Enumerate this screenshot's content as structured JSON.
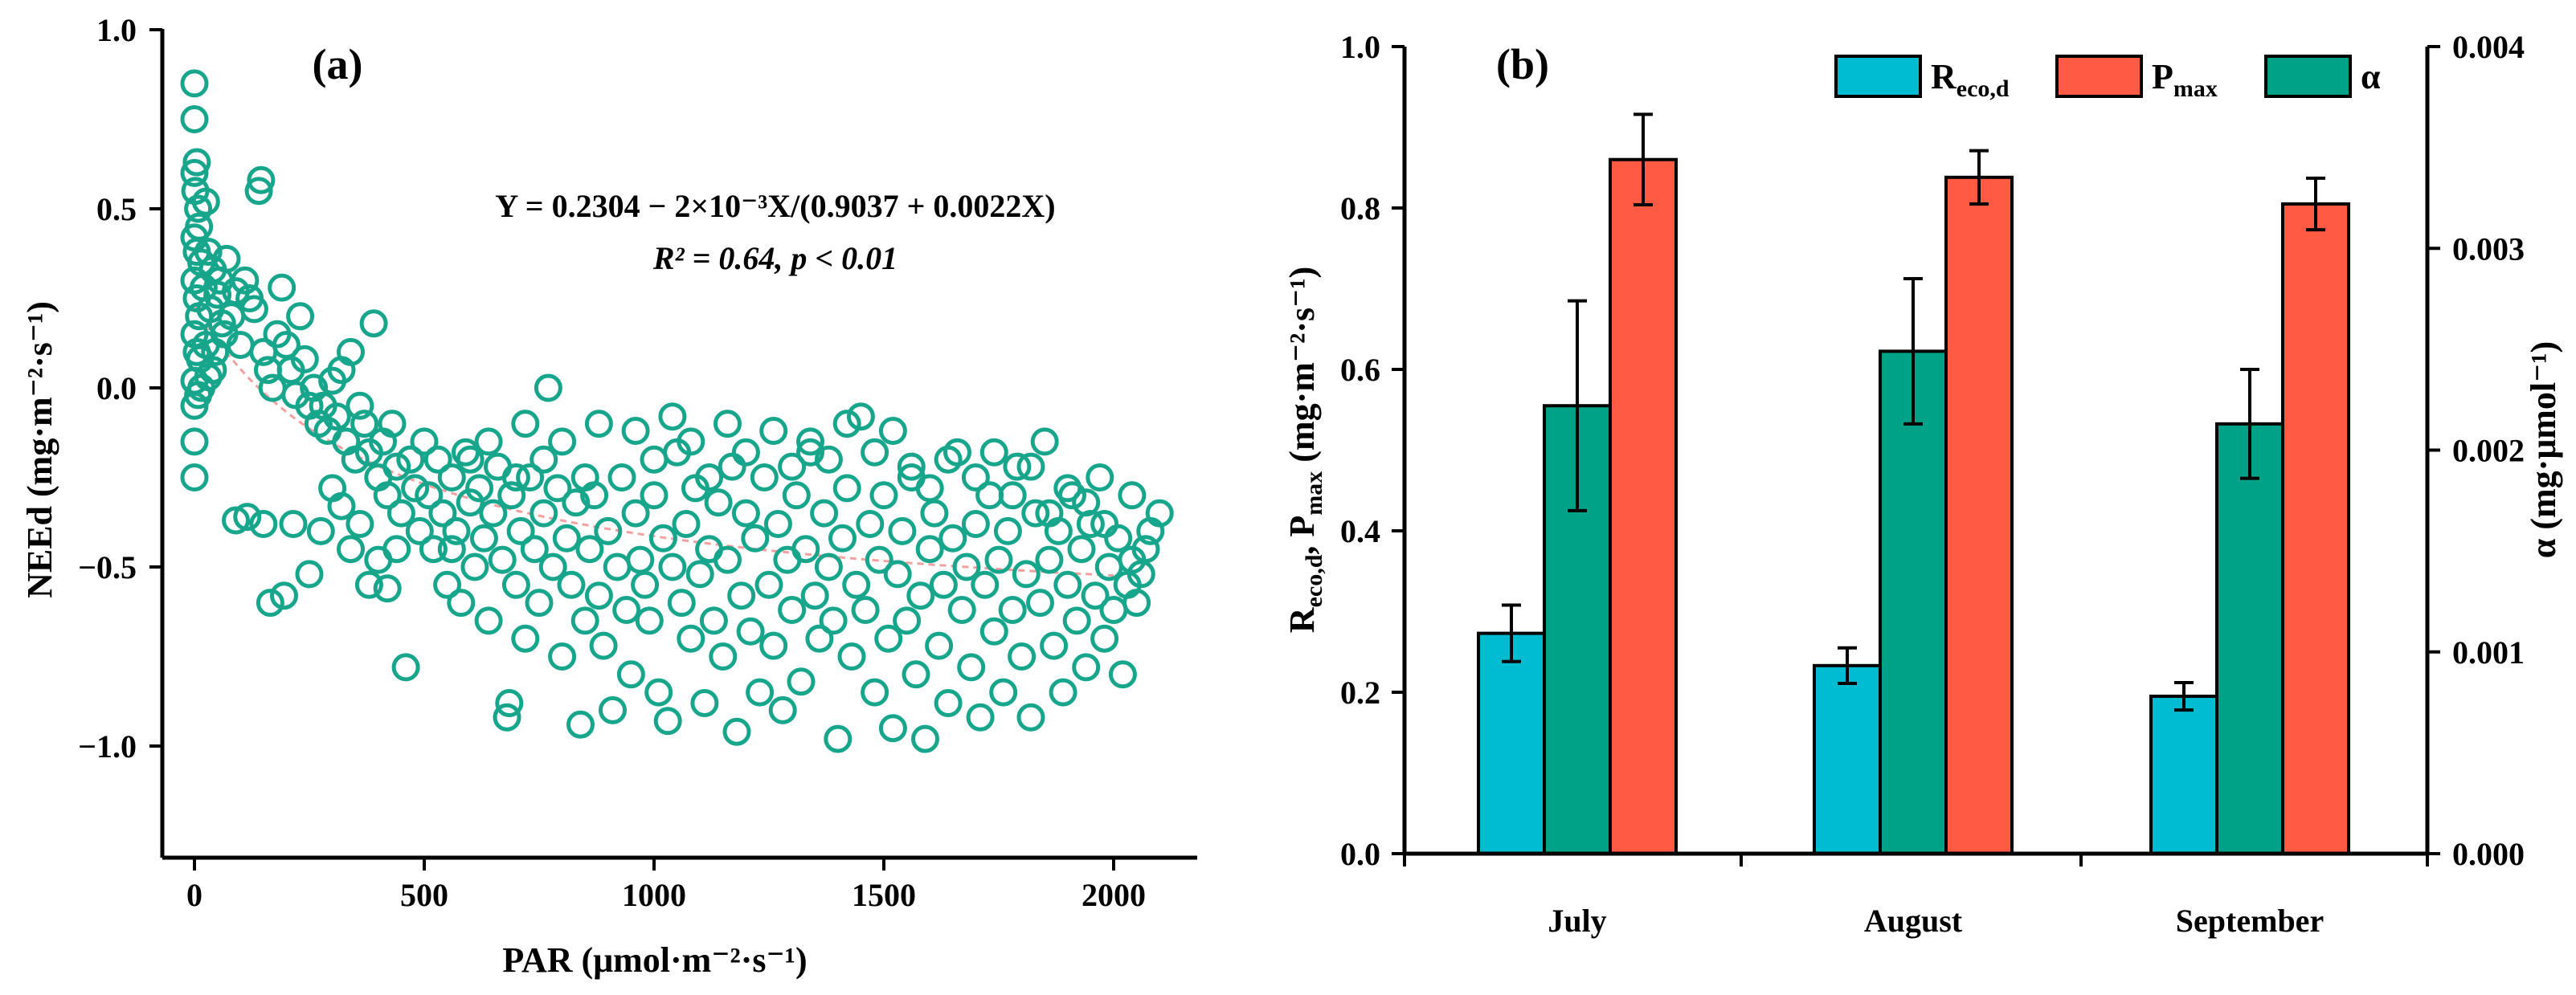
{
  "chart_data": [
    {
      "panel": "(a)",
      "type": "scatter",
      "xlabel": "PAR (μmol·m⁻²·s⁻¹)",
      "ylabel": "NEEd (mg·m⁻²·s⁻¹)",
      "xlim": [
        -50,
        2200
      ],
      "ylim": [
        -1.3,
        1.0
      ],
      "xticks": [
        0,
        500,
        1000,
        1500,
        2000
      ],
      "yticks": [
        -1.0,
        -0.5,
        0.0,
        0.5,
        1.0
      ],
      "xtick_labels": [
        "0",
        "500",
        "1000",
        "1500",
        "2000"
      ],
      "ytick_labels": [
        "−1.0",
        "−0.5",
        "0.0",
        "0.5",
        "1.0"
      ],
      "marker_color": "#17a58c",
      "fit_color": "#f2a0a0",
      "fit": {
        "a": 0.2304,
        "b": 0.9037,
        "c": 0.0022,
        "scale": 0.002
      },
      "equation": "Y = 0.2304 − 2×10⁻³X/(0.9037 + 0.0022X)",
      "stats": "R² = 0.64, p < 0.01",
      "points": [
        [
          0,
          0.85
        ],
        [
          0,
          0.75
        ],
        [
          5,
          0.63
        ],
        [
          0,
          0.6
        ],
        [
          2,
          0.55
        ],
        [
          8,
          0.5
        ],
        [
          25,
          0.52
        ],
        [
          10,
          0.45
        ],
        [
          0,
          0.42
        ],
        [
          5,
          0.38
        ],
        [
          15,
          0.35
        ],
        [
          30,
          0.38
        ],
        [
          40,
          0.33
        ],
        [
          55,
          0.3
        ],
        [
          70,
          0.36
        ],
        [
          0,
          0.3
        ],
        [
          5,
          0.25
        ],
        [
          10,
          0.2
        ],
        [
          20,
          0.28
        ],
        [
          35,
          0.22
        ],
        [
          50,
          0.26
        ],
        [
          60,
          0.18
        ],
        [
          0,
          0.15
        ],
        [
          5,
          0.1
        ],
        [
          12,
          0.08
        ],
        [
          25,
          0.12
        ],
        [
          40,
          0.05
        ],
        [
          0,
          0.02
        ],
        [
          8,
          -0.02
        ],
        [
          0,
          -0.05
        ],
        [
          15,
          0.0
        ],
        [
          30,
          0.03
        ],
        [
          45,
          0.1
        ],
        [
          65,
          0.15
        ],
        [
          80,
          0.2
        ],
        [
          90,
          0.27
        ],
        [
          100,
          0.12
        ],
        [
          110,
          0.3
        ],
        [
          120,
          0.25
        ],
        [
          130,
          0.22
        ],
        [
          140,
          0.55
        ],
        [
          145,
          0.58
        ],
        [
          150,
          0.1
        ],
        [
          160,
          0.05
        ],
        [
          170,
          0.0
        ],
        [
          180,
          0.15
        ],
        [
          190,
          0.28
        ],
        [
          200,
          0.12
        ],
        [
          210,
          0.05
        ],
        [
          220,
          -0.02
        ],
        [
          230,
          0.2
        ],
        [
          240,
          0.08
        ],
        [
          250,
          -0.05
        ],
        [
          260,
          0.0
        ],
        [
          270,
          -0.1
        ],
        [
          280,
          -0.05
        ],
        [
          290,
          -0.12
        ],
        [
          300,
          0.02
        ],
        [
          310,
          -0.08
        ],
        [
          320,
          0.05
        ],
        [
          330,
          -0.15
        ],
        [
          340,
          0.1
        ],
        [
          350,
          -0.2
        ],
        [
          360,
          -0.05
        ],
        [
          370,
          -0.1
        ],
        [
          380,
          -0.18
        ],
        [
          390,
          0.18
        ],
        [
          400,
          -0.25
        ],
        [
          410,
          -0.15
        ],
        [
          420,
          -0.3
        ],
        [
          430,
          -0.1
        ],
        [
          440,
          -0.22
        ],
        [
          450,
          -0.35
        ],
        [
          460,
          -0.78
        ],
        [
          470,
          -0.2
        ],
        [
          480,
          -0.28
        ],
        [
          490,
          -0.4
        ],
        [
          500,
          -0.15
        ],
        [
          0,
          -0.15
        ],
        [
          0,
          -0.25
        ],
        [
          90,
          -0.37
        ],
        [
          115,
          -0.36
        ],
        [
          150,
          -0.38
        ],
        [
          165,
          -0.6
        ],
        [
          195,
          -0.58
        ],
        [
          215,
          -0.38
        ],
        [
          250,
          -0.52
        ],
        [
          275,
          -0.4
        ],
        [
          300,
          -0.28
        ],
        [
          320,
          -0.33
        ],
        [
          340,
          -0.45
        ],
        [
          360,
          -0.38
        ],
        [
          380,
          -0.55
        ],
        [
          400,
          -0.48
        ],
        [
          420,
          -0.56
        ],
        [
          440,
          -0.45
        ],
        [
          510,
          -0.3
        ],
        [
          520,
          -0.45
        ],
        [
          530,
          -0.2
        ],
        [
          540,
          -0.35
        ],
        [
          550,
          -0.55
        ],
        [
          560,
          -0.25
        ],
        [
          570,
          -0.4
        ],
        [
          580,
          -0.6
        ],
        [
          590,
          -0.18
        ],
        [
          600,
          -0.32
        ],
        [
          610,
          -0.5
        ],
        [
          620,
          -0.28
        ],
        [
          630,
          -0.42
        ],
        [
          640,
          -0.65
        ],
        [
          650,
          -0.35
        ],
        [
          660,
          -0.22
        ],
        [
          670,
          -0.48
        ],
        [
          680,
          -0.92
        ],
        [
          685,
          -0.88
        ],
        [
          690,
          -0.3
        ],
        [
          700,
          -0.55
        ],
        [
          710,
          -0.4
        ],
        [
          720,
          -0.7
        ],
        [
          730,
          -0.25
        ],
        [
          740,
          -0.45
        ],
        [
          750,
          -0.6
        ],
        [
          760,
          -0.35
        ],
        [
          770,
          0.0
        ],
        [
          780,
          -0.5
        ],
        [
          790,
          -0.28
        ],
        [
          800,
          -0.75
        ],
        [
          810,
          -0.42
        ],
        [
          820,
          -0.55
        ],
        [
          830,
          -0.32
        ],
        [
          840,
          -0.94
        ],
        [
          850,
          -0.65
        ],
        [
          860,
          -0.45
        ],
        [
          870,
          -0.3
        ],
        [
          880,
          -0.58
        ],
        [
          890,
          -0.72
        ],
        [
          900,
          -0.4
        ],
        [
          910,
          -0.9
        ],
        [
          920,
          -0.5
        ],
        [
          930,
          -0.25
        ],
        [
          940,
          -0.62
        ],
        [
          950,
          -0.8
        ],
        [
          960,
          -0.35
        ],
        [
          970,
          -0.48
        ],
        [
          980,
          -0.55
        ],
        [
          990,
          -0.65
        ],
        [
          1000,
          -0.3
        ],
        [
          1010,
          -0.85
        ],
        [
          1020,
          -0.42
        ],
        [
          1030,
          -0.93
        ],
        [
          1040,
          -0.5
        ],
        [
          1050,
          -0.18
        ],
        [
          1060,
          -0.6
        ],
        [
          1070,
          -0.38
        ],
        [
          1080,
          -0.7
        ],
        [
          1090,
          -0.28
        ],
        [
          1100,
          -0.52
        ],
        [
          1110,
          -0.88
        ],
        [
          1120,
          -0.45
        ],
        [
          1130,
          -0.65
        ],
        [
          1140,
          -0.32
        ],
        [
          1150,
          -0.75
        ],
        [
          1160,
          -0.48
        ],
        [
          1170,
          -0.22
        ],
        [
          1180,
          -0.96
        ],
        [
          1190,
          -0.58
        ],
        [
          1200,
          -0.35
        ],
        [
          1210,
          -0.68
        ],
        [
          1220,
          -0.42
        ],
        [
          1230,
          -0.85
        ],
        [
          1240,
          -0.25
        ],
        [
          1250,
          -0.55
        ],
        [
          1260,
          -0.72
        ],
        [
          1270,
          -0.38
        ],
        [
          1280,
          -0.9
        ],
        [
          1290,
          -0.48
        ],
        [
          1300,
          -0.62
        ],
        [
          1310,
          -0.3
        ],
        [
          1320,
          -0.82
        ],
        [
          1330,
          -0.45
        ],
        [
          1340,
          -0.18
        ],
        [
          1350,
          -0.58
        ],
        [
          1360,
          -0.7
        ],
        [
          1370,
          -0.35
        ],
        [
          1380,
          -0.5
        ],
        [
          1390,
          -0.65
        ],
        [
          1400,
          -0.98
        ],
        [
          1410,
          -0.42
        ],
        [
          1420,
          -0.28
        ],
        [
          1430,
          -0.75
        ],
        [
          1440,
          -0.55
        ],
        [
          1450,
          -0.08
        ],
        [
          1460,
          -0.62
        ],
        [
          1470,
          -0.38
        ],
        [
          1480,
          -0.85
        ],
        [
          1490,
          -0.48
        ],
        [
          1500,
          -0.3
        ],
        [
          1510,
          -0.7
        ],
        [
          1520,
          -0.95
        ],
        [
          1530,
          -0.52
        ],
        [
          1540,
          -0.4
        ],
        [
          1550,
          -0.65
        ],
        [
          1560,
          -0.25
        ],
        [
          1570,
          -0.8
        ],
        [
          1580,
          -0.58
        ],
        [
          1590,
          -0.98
        ],
        [
          1600,
          -0.45
        ],
        [
          1610,
          -0.35
        ],
        [
          1620,
          -0.72
        ],
        [
          1630,
          -0.55
        ],
        [
          1640,
          -0.88
        ],
        [
          1650,
          -0.42
        ],
        [
          1660,
          -0.18
        ],
        [
          1670,
          -0.62
        ],
        [
          1680,
          -0.5
        ],
        [
          1690,
          -0.78
        ],
        [
          1700,
          -0.38
        ],
        [
          1710,
          -0.92
        ],
        [
          1720,
          -0.55
        ],
        [
          1730,
          -0.3
        ],
        [
          1740,
          -0.68
        ],
        [
          1750,
          -0.48
        ],
        [
          1760,
          -0.85
        ],
        [
          1770,
          -0.4
        ],
        [
          1780,
          -0.62
        ],
        [
          1790,
          -0.22
        ],
        [
          1800,
          -0.75
        ],
        [
          1810,
          -0.52
        ],
        [
          1820,
          -0.92
        ],
        [
          1830,
          -0.35
        ],
        [
          1840,
          -0.6
        ],
        [
          1850,
          -0.15
        ],
        [
          1860,
          -0.48
        ],
        [
          1870,
          -0.72
        ],
        [
          1880,
          -0.4
        ],
        [
          1890,
          -0.85
        ],
        [
          1900,
          -0.55
        ],
        [
          1910,
          -0.3
        ],
        [
          1920,
          -0.65
        ],
        [
          1930,
          -0.45
        ],
        [
          1940,
          -0.78
        ],
        [
          1950,
          -0.38
        ],
        [
          1960,
          -0.58
        ],
        [
          1970,
          -0.25
        ],
        [
          1980,
          -0.7
        ],
        [
          1990,
          -0.5
        ],
        [
          2000,
          -0.62
        ],
        [
          2010,
          -0.42
        ],
        [
          2020,
          -0.8
        ],
        [
          2030,
          -0.55
        ],
        [
          2040,
          -0.48
        ],
        [
          2050,
          -0.6
        ],
        [
          2060,
          -0.52
        ],
        [
          2070,
          -0.45
        ],
        [
          2080,
          -0.4
        ],
        [
          2100,
          -0.35
        ],
        [
          560,
          -0.45
        ],
        [
          600,
          -0.2
        ],
        [
          640,
          -0.15
        ],
        [
          700,
          -0.25
        ],
        [
          720,
          -0.1
        ],
        [
          760,
          -0.2
        ],
        [
          800,
          -0.15
        ],
        [
          850,
          -0.25
        ],
        [
          880,
          -0.1
        ],
        [
          960,
          -0.12
        ],
        [
          1000,
          -0.2
        ],
        [
          1040,
          -0.08
        ],
        [
          1080,
          -0.15
        ],
        [
          1120,
          -0.25
        ],
        [
          1160,
          -0.1
        ],
        [
          1200,
          -0.18
        ],
        [
          1260,
          -0.12
        ],
        [
          1300,
          -0.22
        ],
        [
          1340,
          -0.15
        ],
        [
          1380,
          -0.2
        ],
        [
          1420,
          -0.1
        ],
        [
          1480,
          -0.18
        ],
        [
          1520,
          -0.12
        ],
        [
          1560,
          -0.22
        ],
        [
          1600,
          -0.28
        ],
        [
          1640,
          -0.2
        ],
        [
          1700,
          -0.25
        ],
        [
          1740,
          -0.18
        ],
        [
          1780,
          -0.3
        ],
        [
          1820,
          -0.22
        ],
        [
          1860,
          -0.35
        ],
        [
          1900,
          -0.28
        ],
        [
          1940,
          -0.32
        ],
        [
          1980,
          -0.38
        ],
        [
          2040,
          -0.3
        ]
      ]
    },
    {
      "panel": "(b)",
      "type": "bar",
      "categories": [
        "July",
        "August",
        "September"
      ],
      "ylabel_left": "Reco,d, Pmax (mg·m⁻²·s⁻¹)",
      "ylabel_right": "α (mg·μmol⁻¹)",
      "ylim_left": [
        0,
        1.0
      ],
      "ylim_right": [
        0,
        0.004
      ],
      "yticks_left": [
        "0.0",
        "0.2",
        "0.4",
        "0.6",
        "0.8",
        "1.0"
      ],
      "yticks_right": [
        "0.000",
        "0.001",
        "0.002",
        "0.003",
        "0.004"
      ],
      "series": [
        {
          "name": "Reco,d",
          "legend_main": "R",
          "legend_sub": "eco,d",
          "color": "#00bcd0",
          "axis": "left",
          "values": [
            0.273,
            0.233,
            0.195
          ],
          "errors": [
            0.035,
            0.022,
            0.017
          ]
        },
        {
          "name": "α",
          "legend_main": "α",
          "legend_sub": "",
          "color": "#00a287",
          "axis": "right",
          "values": [
            0.00222,
            0.00249,
            0.00213
          ],
          "errors": [
            0.00052,
            0.00036,
            0.00027
          ]
        },
        {
          "name": "Pmax",
          "legend_main": "P",
          "legend_sub": "max",
          "color": "#ff5a44",
          "axis": "left",
          "values": [
            0.86,
            0.838,
            0.805
          ],
          "errors": [
            0.056,
            0.033,
            0.032
          ]
        }
      ]
    }
  ]
}
